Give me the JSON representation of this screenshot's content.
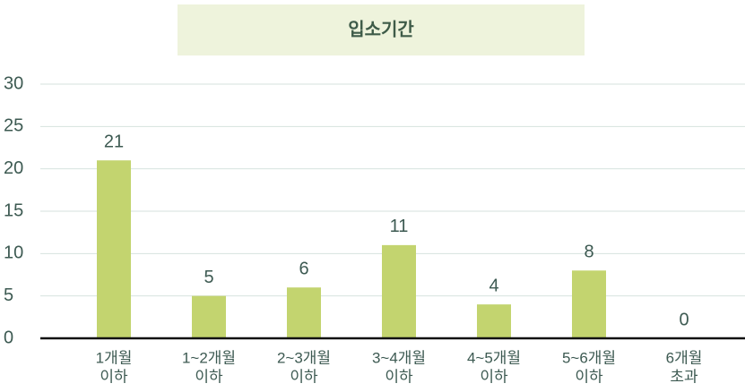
{
  "chart_data": {
    "type": "bar",
    "title": "입소기간",
    "categories": [
      [
        "1개월",
        "이하"
      ],
      [
        "1~2개월",
        "이하"
      ],
      [
        "2~3개월",
        "이하"
      ],
      [
        "3~4개월",
        "이하"
      ],
      [
        "4~5개월",
        "이하"
      ],
      [
        "5~6개월",
        "이하"
      ],
      [
        "6개월",
        "초과"
      ]
    ],
    "values": [
      21,
      5,
      6,
      11,
      4,
      8,
      0
    ],
    "color": "#c3d46f",
    "ylim": [
      0,
      30
    ],
    "yticks": [
      0,
      5,
      10,
      15,
      20,
      25,
      30
    ],
    "grid": true
  }
}
